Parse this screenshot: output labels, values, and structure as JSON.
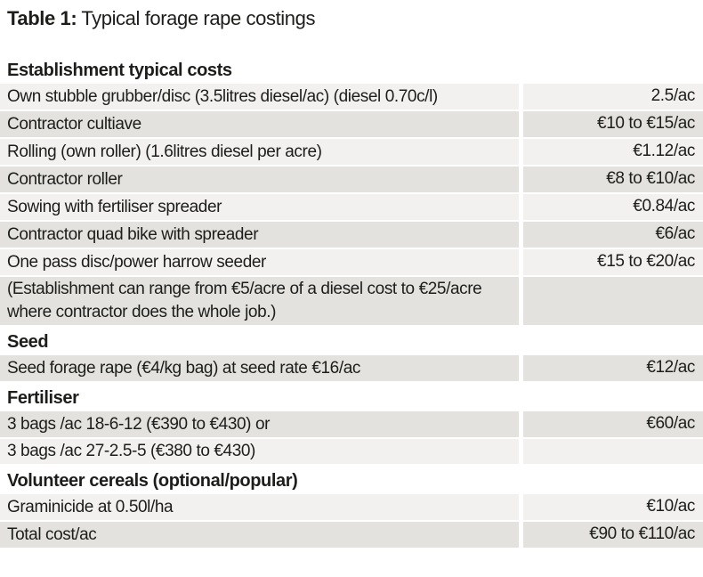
{
  "title": {
    "label": "Table 1:",
    "text": "Typical forage rape costings"
  },
  "table": {
    "sections": [
      {
        "header": "Establishment typical costs",
        "rows": [
          {
            "item": "Own stubble grubber/disc (3.5litres diesel/ac) (diesel 0.70c/l)",
            "cost": "2.5/ac"
          },
          {
            "item": "Contractor cultiave",
            "cost": "€10 to €15/ac"
          },
          {
            "item": "Rolling (own roller) (1.6litres diesel per acre)",
            "cost": "€1.12/ac"
          },
          {
            "item": "Contractor roller",
            "cost": "€8 to €10/ac"
          },
          {
            "item": "Sowing with fertiliser spreader",
            "cost": "€0.84/ac"
          },
          {
            "item": "Contractor quad bike with spreader",
            "cost": "€6/ac"
          },
          {
            "item": "One pass disc/power harrow seeder",
            "cost": "€15 to €20/ac"
          },
          {
            "item": "(Establishment can range from €5/acre of a diesel cost to €25/acre where contractor does the whole job.)",
            "cost": ""
          }
        ]
      },
      {
        "header": "Seed",
        "rows": [
          {
            "item": "Seed forage rape (€4/kg bag) at seed rate €16/ac",
            "cost": "€12/ac"
          }
        ]
      },
      {
        "header": "Fertiliser",
        "rows": [
          {
            "item": "3 bags /ac 18-6-12 (€390 to €430) or",
            "cost": "€60/ac"
          },
          {
            "item": "3 bags /ac 27-2.5-5 (€380 to €430)",
            "cost": ""
          }
        ]
      },
      {
        "header": "Volunteer cereals (optional/popular)",
        "rows": [
          {
            "item": "Graminicide at 0.50l/ha",
            "cost": "€10/ac"
          },
          {
            "item": "Total cost/ac",
            "cost": "€90 to €110/ac"
          }
        ]
      }
    ]
  },
  "colors": {
    "row_light": "#f2f1ef",
    "row_dark": "#e3e2de",
    "text": "#1d1d1b",
    "background": "#ffffff"
  }
}
